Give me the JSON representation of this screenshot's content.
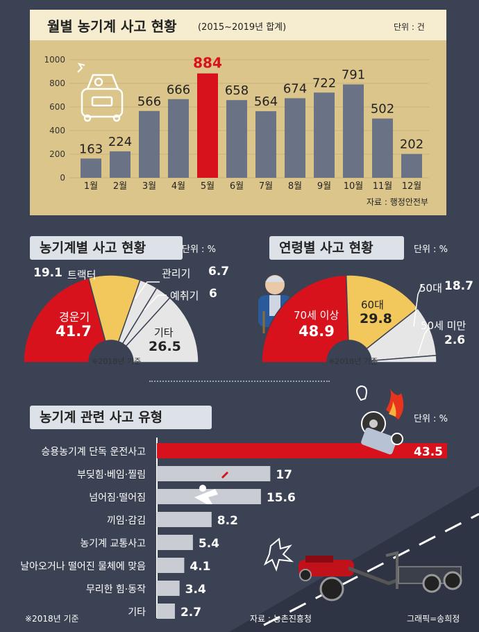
{
  "monthly": {
    "title": "월별 농기계 사고 현황",
    "subtitle": "(2015~2019년 합계)",
    "unit": "단위 : 건",
    "source": "자료 : 행정안전부"
  },
  "machine": {
    "title": "농기계별 사고 현황",
    "unit": "단위 : %",
    "note": "※2018년 기준"
  },
  "age": {
    "title": "연령별 사고 현황",
    "unit": "단위 : %",
    "note": "※2018년 기준"
  },
  "types": {
    "title": "농기계 관련 사고 유형",
    "unit": "단위 : %",
    "note": "※2018년 기준",
    "source": "자료 : 농촌진흥청",
    "credit": "그래픽=송희정"
  },
  "colors": {
    "bg": "#3b4254",
    "panel": "#dcc58a",
    "bar": "#6a7385",
    "highlight": "#d8121c",
    "yellow": "#f2c75c",
    "light": "#e6e6e6"
  },
  "chart_data": [
    {
      "type": "bar",
      "title": "월별 농기계 사고 현황",
      "categories": [
        "1월",
        "2월",
        "3월",
        "4월",
        "5월",
        "6월",
        "7월",
        "8월",
        "9월",
        "10월",
        "11월",
        "12월"
      ],
      "values": [
        163,
        224,
        566,
        666,
        884,
        658,
        564,
        674,
        722,
        791,
        502,
        202
      ],
      "ylim": [
        0,
        1000
      ],
      "yticks": [
        0,
        200,
        400,
        600,
        800,
        1000
      ],
      "highlight_index": 4
    },
    {
      "type": "pie",
      "title": "농기계별 사고 현황",
      "labels": [
        "경운기",
        "트랙터",
        "관리기",
        "예취기",
        "기타"
      ],
      "values": [
        41.7,
        19.1,
        6.7,
        6,
        26.5
      ]
    },
    {
      "type": "pie",
      "title": "연령별 사고 현황",
      "labels": [
        "70세 이상",
        "60대",
        "50대",
        "50세 미만"
      ],
      "values": [
        48.9,
        29.8,
        18.7,
        2.6
      ]
    },
    {
      "type": "bar",
      "title": "농기계 관련 사고 유형",
      "categories": [
        "승용농기계 단독 운전사고",
        "부딪힘·베임·찔림",
        "넘어짐·떨어짐",
        "끼임·감김",
        "농기계 교통사고",
        "날아오거나 떨어진 물체에 맞음",
        "무리한 힘·동작",
        "기타"
      ],
      "values": [
        43.5,
        17,
        15.6,
        8.2,
        5.4,
        4.1,
        3.4,
        2.7
      ]
    }
  ]
}
